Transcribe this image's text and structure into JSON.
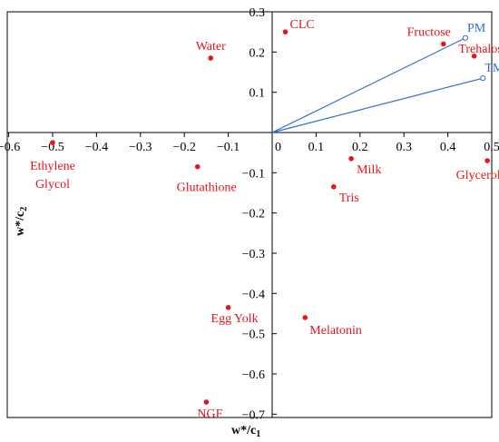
{
  "chart_data": {
    "type": "scatter",
    "xlabel": "w*/c",
    "xlabel_sub": "1",
    "ylabel": "w*/c",
    "ylabel_sub": "2",
    "xlim": [
      -0.6,
      0.5
    ],
    "ylim": [
      -0.7,
      0.3
    ],
    "xticks": [
      -0.6,
      -0.5,
      -0.4,
      -0.3,
      -0.2,
      -0.1,
      0,
      0.1,
      0.2,
      0.3,
      0.4,
      0.5
    ],
    "xtick_labels": [
      "−0.6",
      "−0.5",
      "−0.4",
      "−0.3",
      "−0.2",
      "−0.1",
      "0",
      "0.1",
      "0.2",
      "0.3",
      "0.4",
      "0.5"
    ],
    "yticks": [
      0.3,
      0.2,
      0.1,
      0,
      -0.1,
      -0.2,
      -0.3,
      -0.4,
      -0.5,
      -0.6,
      -0.7
    ],
    "ytick_labels": [
      "0.3",
      "0.2",
      "0.1",
      "0",
      "−0.1",
      "−0.2",
      "−0.3",
      "−0.4",
      "−0.5",
      "−0.6",
      "−0.7"
    ],
    "grid": false,
    "colors": {
      "points": "#e8141b",
      "vectors": "#2f6fd6",
      "axis": "#000000"
    },
    "points": [
      {
        "name": "CLC",
        "x": 0.03,
        "y": 0.25
      },
      {
        "name": "Water",
        "x": -0.14,
        "y": 0.185
      },
      {
        "name": "Fructose",
        "x": 0.39,
        "y": 0.22
      },
      {
        "name": "Trehalose",
        "x": 0.46,
        "y": 0.19
      },
      {
        "name": "Ethylene Glycol",
        "lines": [
          "Ethylene",
          "Glycol"
        ],
        "x": -0.5,
        "y": -0.025
      },
      {
        "name": "Glutathione",
        "x": -0.17,
        "y": -0.085
      },
      {
        "name": "Milk",
        "x": 0.18,
        "y": -0.065
      },
      {
        "name": "Tris",
        "x": 0.14,
        "y": -0.135
      },
      {
        "name": "Glycerol",
        "x": 0.49,
        "y": -0.07
      },
      {
        "name": "Egg Yolk",
        "x": -0.1,
        "y": -0.435
      },
      {
        "name": "Melatonin",
        "x": 0.075,
        "y": -0.46
      },
      {
        "name": "NGF",
        "x": -0.15,
        "y": -0.67
      }
    ],
    "vectors": [
      {
        "name": "PM",
        "x": 0.44,
        "y": 0.235
      },
      {
        "name": "TM",
        "x": 0.48,
        "y": 0.135
      }
    ]
  }
}
